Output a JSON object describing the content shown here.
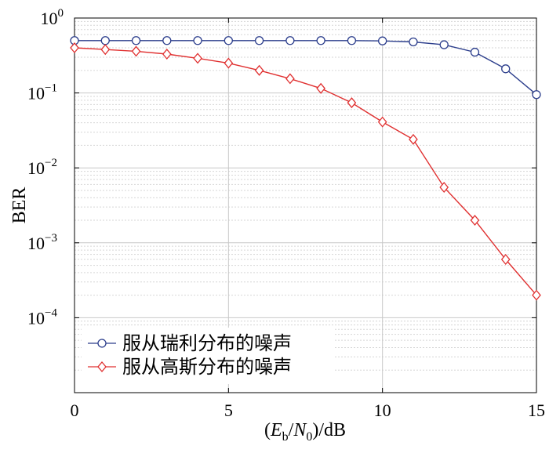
{
  "chart_data": {
    "type": "line",
    "xlabel": "",
    "ylabel": "BER",
    "xlabel_parts": {
      "open": "(",
      "E": "E",
      "E_sub": "b",
      "slash": "/",
      "N": "N",
      "N_sub": "0",
      "close": ")/dB"
    },
    "xlim": [
      0,
      15
    ],
    "ylim": [
      1e-05,
      1
    ],
    "yscale": "log",
    "xticks": [
      0,
      5,
      10,
      15
    ],
    "xtick_labels": [
      "0",
      "5",
      "10",
      "15"
    ],
    "yticks": [
      1,
      0.1,
      0.01,
      0.001,
      0.0001
    ],
    "ytick_labels": [
      {
        "base": "10",
        "exp": "0"
      },
      {
        "base": "10",
        "exp": "−1"
      },
      {
        "base": "10",
        "exp": "−2"
      },
      {
        "base": "10",
        "exp": "−3"
      },
      {
        "base": "10",
        "exp": "−4"
      }
    ],
    "grid": true,
    "legend_position": "lower-left",
    "x": [
      0,
      1,
      2,
      3,
      4,
      5,
      6,
      7,
      8,
      9,
      10,
      11,
      12,
      13,
      14,
      15
    ],
    "series": [
      {
        "name": "服从瑞利分布的噪声",
        "color": "#2c3e8c",
        "marker": "circle",
        "values": [
          0.5,
          0.5,
          0.5,
          0.5,
          0.5,
          0.5,
          0.5,
          0.5,
          0.5,
          0.5,
          0.495,
          0.48,
          0.44,
          0.35,
          0.21,
          0.095
        ]
      },
      {
        "name": "服从高斯分布的噪声",
        "color": "#e03030",
        "marker": "diamond",
        "values": [
          0.4,
          0.38,
          0.36,
          0.33,
          0.29,
          0.25,
          0.2,
          0.155,
          0.115,
          0.074,
          0.041,
          0.024,
          0.0055,
          0.002,
          0.0006,
          0.0002
        ]
      }
    ]
  }
}
